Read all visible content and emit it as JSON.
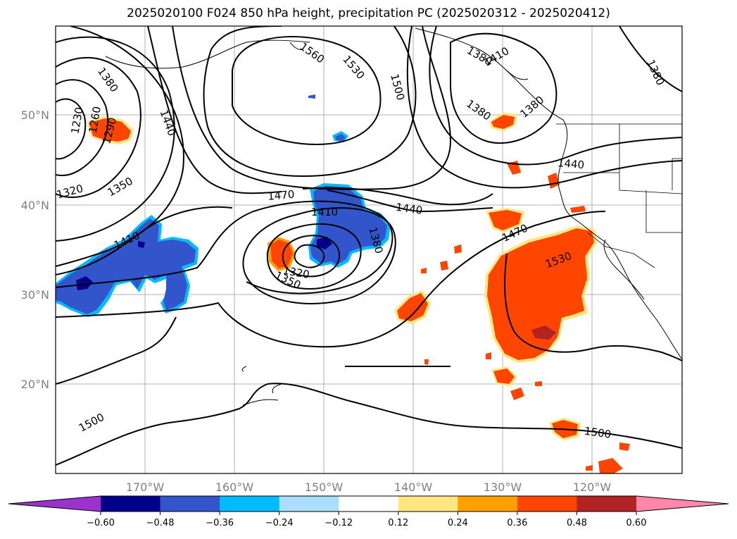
{
  "title": "2025020100 F024 850 hPa height, precipitation PC (2025020312 - 2025020412)",
  "axes": {
    "lon_ticks": [
      "170°W",
      "160°W",
      "150°W",
      "140°W",
      "130°W",
      "120°W"
    ],
    "lat_ticks": [
      "50°N",
      "40°N",
      "30°N",
      "20°N"
    ]
  },
  "colorbar": {
    "ticks": [
      "−0.60",
      "−0.48",
      "−0.36",
      "−0.24",
      "−0.12",
      "0.12",
      "0.24",
      "0.36",
      "0.48",
      "0.60"
    ],
    "colors": [
      "#9933cc",
      "#00008b",
      "#3355cc",
      "#00bbff",
      "#aaddff",
      "#ffffff",
      "#ffe680",
      "#ffa000",
      "#ff4500",
      "#b22222",
      "#ff88aa"
    ]
  },
  "contour_labels": [
    "1380",
    "1230",
    "1260",
    "1290",
    "1320",
    "1350",
    "1440",
    "1560",
    "1530",
    "1500",
    "1410",
    "1380",
    "1470",
    "1410",
    "1440",
    "1380",
    "1320",
    "1350",
    "1470",
    "1530",
    "1500",
    "1500",
    "1440",
    "1380",
    "1410",
    "1380",
    "1380"
  ],
  "colors": {
    "negative_fill": "#3355cc",
    "negative_dark": "#00008b",
    "positive_fill": "#ff4500",
    "positive_dark": "#b22222",
    "positive_edge": "#ffe680"
  }
}
